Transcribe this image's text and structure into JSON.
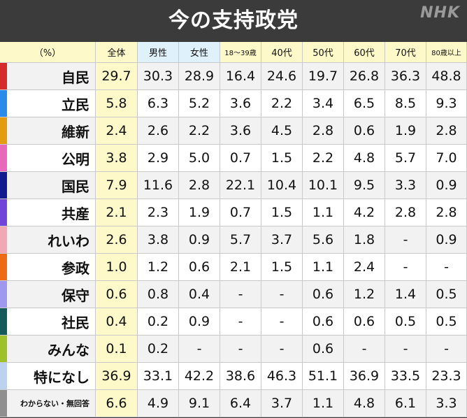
{
  "header": {
    "title": "今の支持政党",
    "logo": "NHK"
  },
  "colors": {
    "header_yellow": "#fdf9c8",
    "header_blue": "#dff1fb",
    "col_total": "#fdf9c8",
    "row_odd": "#f2f2f2",
    "row_even": "#ffffff"
  },
  "chart_data": {
    "type": "table",
    "title": "今の支持政党",
    "unit_label": "（%）",
    "columns": [
      "全体",
      "男性",
      "女性",
      "18～39歳",
      "40代",
      "50代",
      "60代",
      "70代",
      "80歳以上"
    ],
    "rows": [
      {
        "party": "自民",
        "color": "#d52b2b",
        "values": [
          "29.7",
          "30.3",
          "28.9",
          "16.4",
          "24.6",
          "19.7",
          "26.8",
          "36.3",
          "48.8"
        ]
      },
      {
        "party": "立民",
        "color": "#2a8bea",
        "values": [
          "5.8",
          "6.3",
          "5.2",
          "3.6",
          "2.2",
          "3.4",
          "6.5",
          "8.5",
          "9.3"
        ]
      },
      {
        "party": "維新",
        "color": "#e39b12",
        "values": [
          "2.4",
          "2.6",
          "2.2",
          "3.6",
          "4.5",
          "2.8",
          "0.6",
          "1.9",
          "2.8"
        ]
      },
      {
        "party": "公明",
        "color": "#e868bb",
        "values": [
          "3.8",
          "2.9",
          "5.0",
          "0.7",
          "1.5",
          "2.2",
          "4.8",
          "5.7",
          "7.0"
        ]
      },
      {
        "party": "国民",
        "color": "#111c8f",
        "values": [
          "7.9",
          "11.6",
          "2.8",
          "22.1",
          "10.4",
          "10.1",
          "9.5",
          "3.3",
          "0.9"
        ]
      },
      {
        "party": "共産",
        "color": "#7145d8",
        "values": [
          "2.1",
          "2.3",
          "1.9",
          "0.7",
          "1.5",
          "1.1",
          "4.2",
          "2.8",
          "2.8"
        ]
      },
      {
        "party": "れいわ",
        "color": "#f2a7b5",
        "values": [
          "2.6",
          "3.8",
          "0.9",
          "5.7",
          "3.7",
          "5.6",
          "1.8",
          "-",
          "0.9"
        ]
      },
      {
        "party": "参政",
        "color": "#ef6a12",
        "values": [
          "1.0",
          "1.2",
          "0.6",
          "2.1",
          "1.5",
          "1.1",
          "2.4",
          "-",
          "-"
        ]
      },
      {
        "party": "保守",
        "color": "#9f98ee",
        "values": [
          "0.6",
          "0.8",
          "0.4",
          "-",
          "-",
          "0.6",
          "1.2",
          "1.4",
          "0.5"
        ]
      },
      {
        "party": "社民",
        "color": "#145a5a",
        "values": [
          "0.4",
          "0.2",
          "0.9",
          "-",
          "-",
          "0.6",
          "0.6",
          "0.5",
          "0.5"
        ]
      },
      {
        "party": "みんな",
        "color": "#9ec12a",
        "values": [
          "0.1",
          "0.2",
          "-",
          "-",
          "-",
          "0.6",
          "-",
          "-",
          "-"
        ]
      },
      {
        "party": "特になし",
        "color": "#bcd3f0",
        "values": [
          "36.9",
          "33.1",
          "42.2",
          "38.6",
          "46.3",
          "51.1",
          "36.9",
          "33.5",
          "23.3"
        ]
      },
      {
        "party": "わからない・無回答",
        "color": "#8f8f8f",
        "values": [
          "6.6",
          "4.9",
          "9.1",
          "6.4",
          "3.7",
          "1.1",
          "4.8",
          "6.1",
          "3.3"
        ]
      }
    ]
  }
}
